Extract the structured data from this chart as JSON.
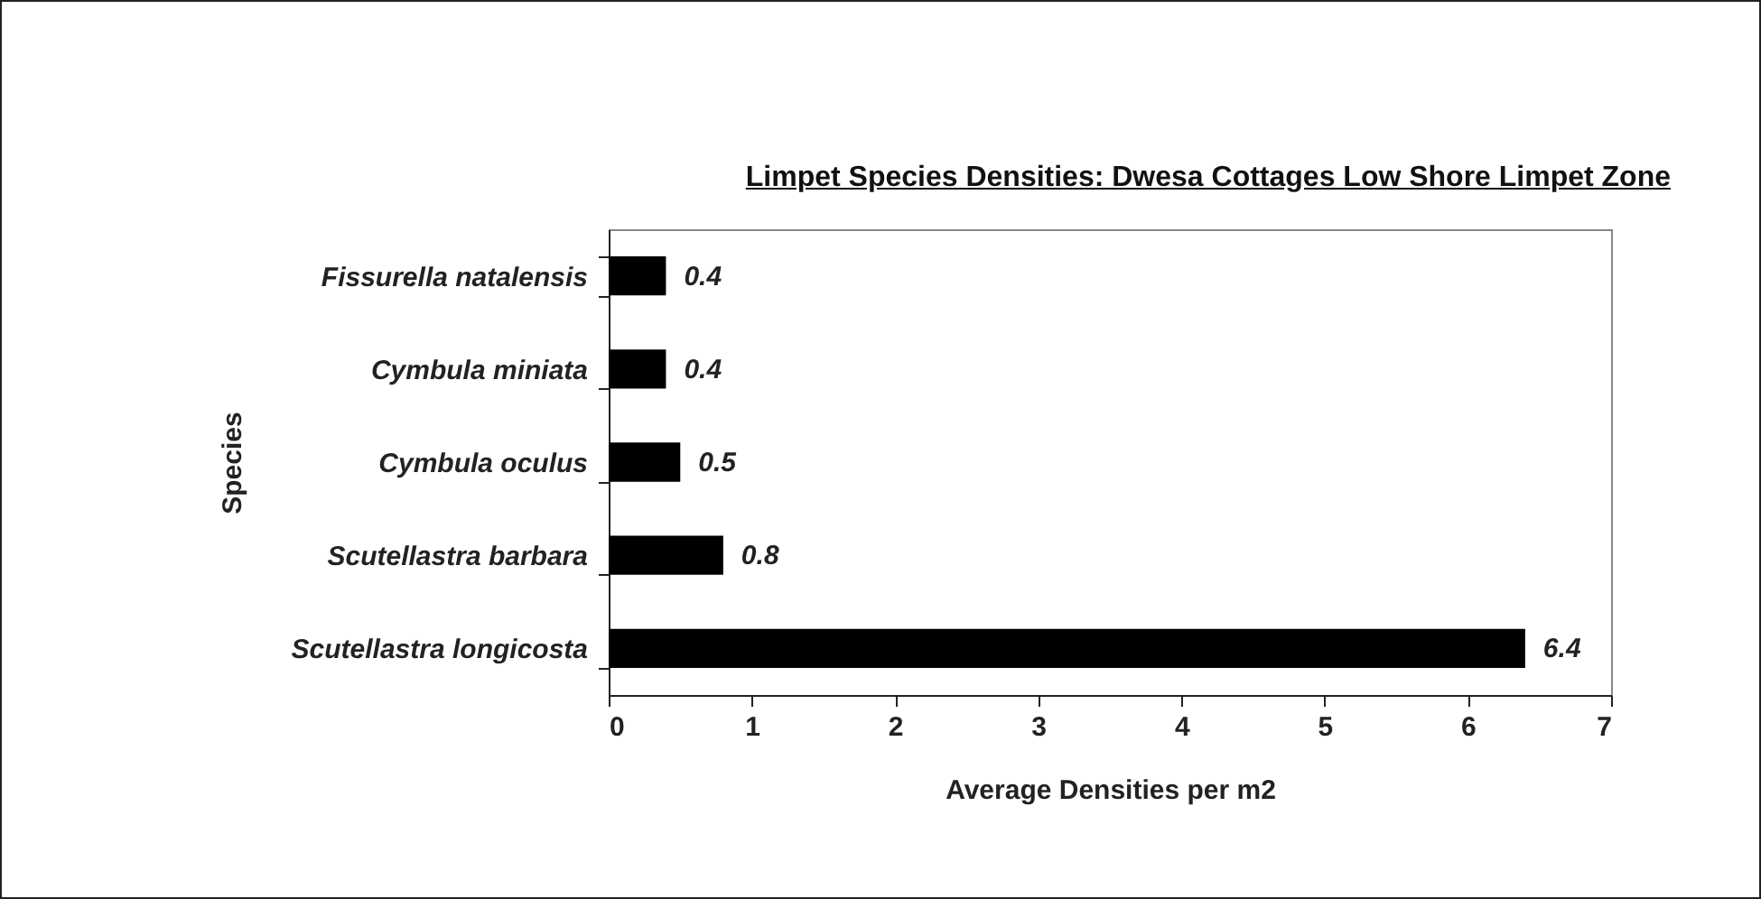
{
  "chart_data": {
    "type": "bar",
    "orientation": "horizontal",
    "title": "Limpet Species Densities: Dwesa Cottages Low Shore Limpet Zone",
    "xlabel": "Average Densities  per m2",
    "ylabel": "Species",
    "categories": [
      "Fissurella natalensis",
      "Cymbula miniata",
      "Cymbula oculus",
      "Scutellastra barbara",
      "Scutellastra longicosta"
    ],
    "values": [
      0.4,
      0.4,
      0.5,
      0.8,
      6.4
    ],
    "color": "#000000",
    "xlim": [
      0,
      7
    ],
    "xticks": [
      0,
      1,
      2,
      3,
      4,
      5,
      6,
      7
    ],
    "data_labels": true,
    "grid": false
  }
}
